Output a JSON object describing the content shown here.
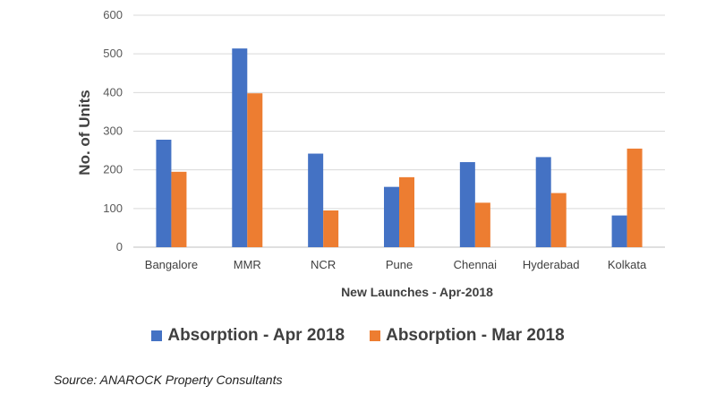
{
  "chart_data": {
    "type": "bar",
    "categories": [
      "Bangalore",
      "MMR",
      "NCR",
      "Pune",
      "Chennai",
      "Hyderabad",
      "Kolkata"
    ],
    "series": [
      {
        "name": "Absorption - Apr 2018",
        "color": "#4472C4",
        "values": [
          278,
          514,
          242,
          156,
          220,
          233,
          82
        ]
      },
      {
        "name": "Absorption - Mar 2018",
        "color": "#ED7D31",
        "values": [
          195,
          398,
          95,
          181,
          115,
          140,
          255
        ]
      }
    ],
    "xlabel": "New Launches  - Apr-2018",
    "ylabel": "No. of Units",
    "ylim": [
      0,
      600
    ],
    "yticks": [
      0,
      100,
      200,
      300,
      400,
      500,
      600
    ],
    "grid": true,
    "legend_position": "bottom"
  },
  "source": "Source: ANAROCK Property Consultants"
}
